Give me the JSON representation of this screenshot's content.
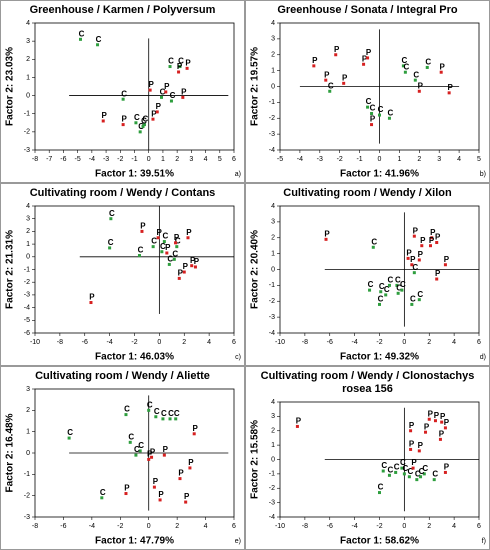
{
  "chart_data": [
    {
      "type": "scatter",
      "title": "Greenhouse / Karmen / Polyversum",
      "x_label": "Factor 1: 39.51%",
      "y_label": "Factor 2: 23.03%",
      "panel_label": "a)",
      "xlim": [
        -8,
        6
      ],
      "ylim": [
        -3,
        4
      ],
      "xticks": [
        -8,
        -7,
        -6,
        -5,
        -4,
        -3,
        -2,
        -1,
        0,
        1,
        2,
        3,
        4,
        5,
        6
      ],
      "yticks": [
        -3,
        -2,
        -1,
        0,
        1,
        2,
        3,
        4
      ],
      "series": [
        {
          "name": "C",
          "color": "#2e9e3e",
          "x": [
            -4.8,
            -3.6,
            -1.8,
            -0.9,
            -0.6,
            -0.3,
            1.5,
            2.2,
            1.6,
            0.9,
            -0.4
          ],
          "values": [
            3.1,
            2.8,
            -0.2,
            -1.5,
            -2.0,
            -1.6,
            1.6,
            1.6,
            -0.3,
            -0.1,
            -1.7
          ]
        },
        {
          "name": "P",
          "color": "#d62020",
          "x": [
            -3.2,
            -1.8,
            0.1,
            0.3,
            1.2,
            2.1,
            2.7,
            2.4,
            0.6
          ],
          "values": [
            -1.4,
            -1.6,
            0.3,
            -1.3,
            0.2,
            1.3,
            1.5,
            -0.1,
            -0.9
          ]
        }
      ]
    },
    {
      "type": "scatter",
      "title": "Greenhouse / Sonata / Integral Pro",
      "x_label": "Factor 1: 41.96%",
      "y_label": "Factor 2: 19.57%",
      "panel_label": "b)",
      "xlim": [
        -5,
        5
      ],
      "ylim": [
        -4,
        4
      ],
      "xticks": [
        -5,
        -4,
        -3,
        -2,
        -1,
        0,
        1,
        2,
        3,
        4,
        5
      ],
      "yticks": [
        -4,
        -3,
        -2,
        -1,
        0,
        1,
        2,
        3,
        4
      ],
      "series": [
        {
          "name": "C",
          "color": "#2e9e3e",
          "x": [
            -2.5,
            -0.6,
            0,
            0.5,
            -0.4,
            1.2,
            1.8,
            2.4,
            1.3
          ],
          "values": [
            -0.3,
            -1.3,
            -1.8,
            -2.0,
            -1.7,
            1.3,
            0.4,
            1.2,
            0.9
          ]
        },
        {
          "name": "P",
          "color": "#d62020",
          "x": [
            -3.3,
            -2.2,
            -2.7,
            -1.8,
            -0.8,
            -0.6,
            -0.4,
            3.1,
            3.5,
            2.0
          ],
          "values": [
            1.3,
            2.0,
            0.4,
            0.2,
            1.4,
            1.8,
            -2.4,
            0.9,
            -0.4,
            -0.3
          ]
        }
      ]
    },
    {
      "type": "scatter",
      "title": "Cultivating room / Wendy / Contans",
      "x_label": "Factor 1: 46.03%",
      "y_label": "Factor 2: 21.31%",
      "panel_label": "c)",
      "xlim": [
        -10,
        6
      ],
      "ylim": [
        -6,
        4
      ],
      "xticks": [
        -10,
        -8,
        -6,
        -4,
        -2,
        0,
        2,
        4,
        6
      ],
      "yticks": [
        -6,
        -5,
        -4,
        -3,
        -2,
        -1,
        0,
        1,
        2,
        3,
        4
      ],
      "series": [
        {
          "name": "C",
          "color": "#2e9e3e",
          "x": [
            -3.9,
            -4.0,
            -1.6,
            -0.5,
            0.4,
            0.8,
            1.4,
            0.2,
            1.2
          ],
          "values": [
            3.0,
            0.7,
            0.1,
            0.8,
            1.2,
            -0.6,
            0.8,
            0.4,
            -0.2
          ]
        },
        {
          "name": "P",
          "color": "#d62020",
          "x": [
            -5.5,
            -1.4,
            -0.1,
            1.3,
            2.3,
            2.6,
            2.0,
            1.6,
            0.6,
            2.9
          ],
          "values": [
            -3.6,
            2.0,
            1.5,
            1.1,
            1.5,
            -0.7,
            -1.2,
            -1.7,
            0.3,
            -0.8
          ]
        }
      ]
    },
    {
      "type": "scatter",
      "title": "Cultivating room / Wendy / Xilon",
      "x_label": "Factor 1: 49.32%",
      "y_label": "Factor 2: 20.40%",
      "panel_label": "d)",
      "xlim": [
        -10,
        6
      ],
      "ylim": [
        -4,
        4
      ],
      "xticks": [
        -10,
        -8,
        -6,
        -4,
        -2,
        0,
        2,
        4,
        6
      ],
      "yticks": [
        -4,
        -3,
        -2,
        -1,
        0,
        1,
        2,
        3,
        4
      ],
      "series": [
        {
          "name": "C",
          "color": "#2e9e3e",
          "x": [
            -2.5,
            -2.8,
            -1.9,
            -1.5,
            -1.2,
            -0.6,
            -0.5,
            -2.0,
            1.2,
            0.6,
            -0.2,
            0.8
          ],
          "values": [
            1.4,
            -1.3,
            -1.4,
            -1.6,
            -1.0,
            -1.0,
            -1.5,
            -2.2,
            -1.9,
            -2.2,
            -1.3,
            -0.2
          ]
        },
        {
          "name": "P",
          "color": "#d62020",
          "x": [
            -6.3,
            0.8,
            2.2,
            1.4,
            2.1,
            2.6,
            1.2,
            0.3,
            3.3,
            2.6,
            0.6
          ],
          "values": [
            1.9,
            2.1,
            2.0,
            1.5,
            1.5,
            1.7,
            0.6,
            0.7,
            0.3,
            -0.6,
            0.3
          ]
        }
      ]
    },
    {
      "type": "scatter",
      "title": "Cultivating room / Wendy / Aliette",
      "x_label": "Factor 1: 47.79%",
      "y_label": "Factor 2: 16.48%",
      "panel_label": "e)",
      "xlim": [
        -8,
        6
      ],
      "ylim": [
        -3,
        3
      ],
      "xticks": [
        -8,
        -6,
        -4,
        -2,
        0,
        2,
        4,
        6
      ],
      "yticks": [
        -3,
        -2,
        -1,
        0,
        1,
        2,
        3
      ],
      "series": [
        {
          "name": "C",
          "color": "#2e9e3e",
          "x": [
            -5.6,
            -3.3,
            -1.6,
            -1.3,
            -0.6,
            0,
            0.5,
            1.0,
            1.5,
            1.9,
            -0.9
          ],
          "values": [
            0.7,
            -2.1,
            1.8,
            0.5,
            0.1,
            2.0,
            1.7,
            1.6,
            1.6,
            1.6,
            -0.1
          ]
        },
        {
          "name": "P",
          "color": "#d62020",
          "x": [
            -1.6,
            0.8,
            0.4,
            0,
            1.1,
            2.2,
            2.9,
            3.2,
            2.6,
            0.2
          ],
          "values": [
            -1.9,
            -2.2,
            -1.6,
            -0.3,
            -0.1,
            -1.2,
            -0.7,
            0.9,
            -2.3,
            -0.2
          ]
        }
      ]
    },
    {
      "type": "scatter",
      "title": "Cultivating room / Wendy / Clonostachys rosea 156",
      "x_label": "Factor 1: 58.62%",
      "y_label": "Factor 2: 15.58%",
      "panel_label": "f)",
      "xlim": [
        -10,
        6
      ],
      "ylim": [
        -4,
        4
      ],
      "xticks": [
        -10,
        -8,
        -6,
        -4,
        -2,
        0,
        2,
        4,
        6
      ],
      "yticks": [
        -4,
        -3,
        -2,
        -1,
        0,
        1,
        2,
        3,
        4
      ],
      "series": [
        {
          "name": "C",
          "color": "#2e9e3e",
          "x": [
            -1.7,
            -1.2,
            -0.7,
            -0.2,
            0.4,
            1.0,
            1.6,
            2.4,
            -2.0,
            0,
            1.3
          ],
          "values": [
            -0.8,
            -1.1,
            -0.9,
            -0.6,
            -1.2,
            -1.4,
            -1.0,
            -1.4,
            -2.3,
            -1.0,
            -1.2
          ]
        },
        {
          "name": "P",
          "color": "#d62020",
          "x": [
            -8.6,
            0.5,
            2.0,
            2.5,
            3.0,
            1.7,
            2.9,
            3.3,
            1.2,
            0.5,
            0.7,
            3.3
          ],
          "values": [
            2.3,
            2.0,
            2.8,
            2.7,
            2.6,
            1.9,
            1.4,
            2.2,
            0.6,
            0.7,
            -0.6,
            -0.9
          ]
        }
      ]
    }
  ]
}
